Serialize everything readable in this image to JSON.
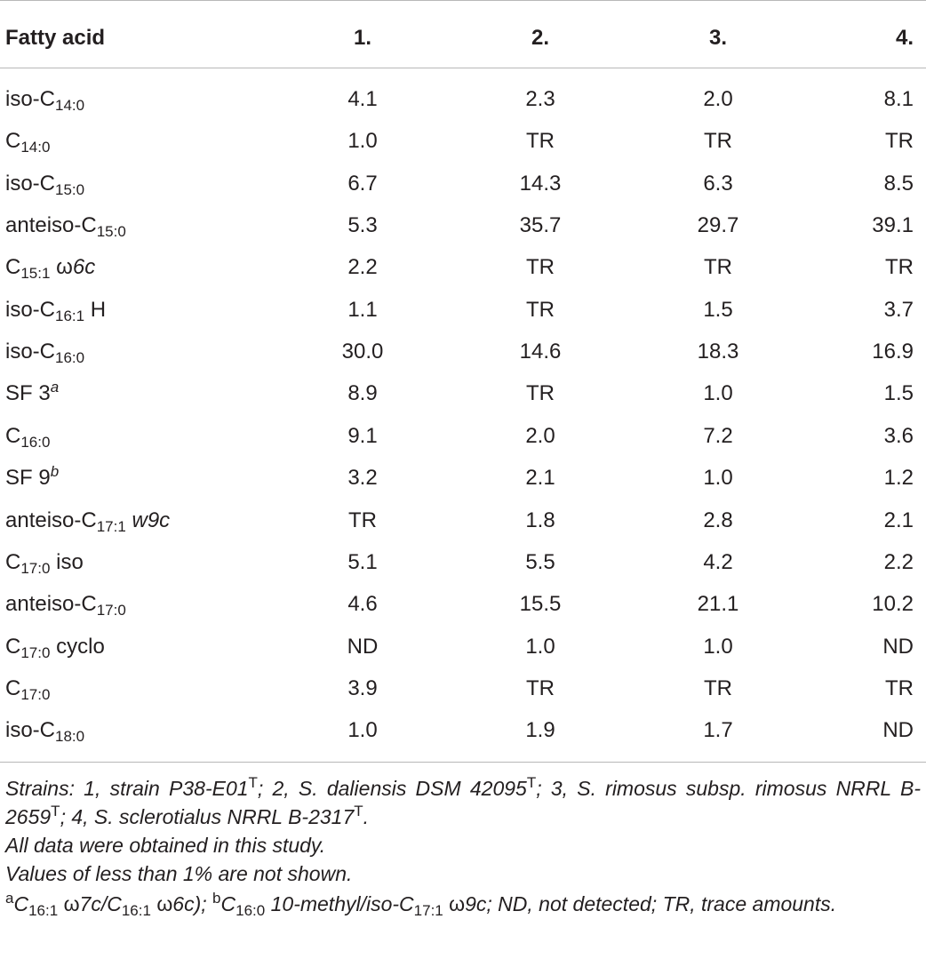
{
  "table": {
    "headers": [
      "Fatty acid",
      "1.",
      "2.",
      "3.",
      "4."
    ],
    "rows": [
      {
        "name": {
          "pre": "iso-C",
          "sub": "14:0",
          "post": ""
        },
        "values": [
          "4.1",
          "2.3",
          "2.0",
          "8.1"
        ]
      },
      {
        "name": {
          "pre": "C",
          "sub": "14:0",
          "post": ""
        },
        "values": [
          "1.0",
          "TR",
          "TR",
          "TR"
        ]
      },
      {
        "name": {
          "pre": "iso-C",
          "sub": "15:0",
          "post": ""
        },
        "values": [
          "6.7",
          "14.3",
          "6.3",
          "8.5"
        ]
      },
      {
        "name": {
          "pre": "anteiso-C",
          "sub": "15:0",
          "post": ""
        },
        "values": [
          "5.3",
          "35.7",
          "29.7",
          "39.1"
        ]
      },
      {
        "name": {
          "pre": "C",
          "sub": "15:1",
          "post": " ω",
          "post_italic": "6c"
        },
        "values": [
          "2.2",
          "TR",
          "TR",
          "TR"
        ]
      },
      {
        "name": {
          "pre": "iso-C",
          "sub": "16:1",
          "post": " H"
        },
        "values": [
          "1.1",
          "TR",
          "1.5",
          "3.7"
        ]
      },
      {
        "name": {
          "pre": "iso-C",
          "sub": "16:0",
          "post": ""
        },
        "values": [
          "30.0",
          "14.6",
          "18.3",
          "16.9"
        ]
      },
      {
        "name": {
          "pre": "SF 3",
          "sup": "a"
        },
        "values": [
          "8.9",
          "TR",
          "1.0",
          "1.5"
        ]
      },
      {
        "name": {
          "pre": "C",
          "sub": "16:0",
          "post": ""
        },
        "values": [
          "9.1",
          "2.0",
          "7.2",
          "3.6"
        ]
      },
      {
        "name": {
          "pre": "SF 9",
          "sup": "b"
        },
        "values": [
          "3.2",
          "2.1",
          "1.0",
          "1.2"
        ]
      },
      {
        "name": {
          "pre": "anteiso-C",
          "sub": "17:1",
          "post": " ",
          "post_italic": "w9c"
        },
        "values": [
          "TR",
          "1.8",
          "2.8",
          "2.1"
        ]
      },
      {
        "name": {
          "pre": "C",
          "sub": "17:0",
          "post": " iso"
        },
        "values": [
          "5.1",
          "5.5",
          "4.2",
          "2.2"
        ]
      },
      {
        "name": {
          "pre": "anteiso-C",
          "sub": "17:0",
          "post": ""
        },
        "values": [
          "4.6",
          "15.5",
          "21.1",
          "10.2"
        ]
      },
      {
        "name": {
          "pre": "C",
          "sub": "17:0",
          "post": " cyclo"
        },
        "values": [
          "ND",
          "1.0",
          "1.0",
          "ND"
        ]
      },
      {
        "name": {
          "pre": "C",
          "sub": "17:0",
          "post": ""
        },
        "values": [
          "3.9",
          "TR",
          "TR",
          "TR"
        ]
      },
      {
        "name": {
          "pre": "iso-C",
          "sub": "18:0",
          "post": ""
        },
        "values": [
          "1.0",
          "1.9",
          "1.7",
          "ND"
        ]
      }
    ]
  },
  "footnotes": {
    "strains": {
      "s1": "Strains: 1, strain P38-E01",
      "s2": "; 2, S. daliensis DSM 42095",
      "s3": "; 3, S. rimosus subsp. rimosus NRRL B-2659",
      "s4": "; 4, S. sclerotialus NRRL B-2317",
      "end": ".",
      "type_mark": "T"
    },
    "data_note": "All data were obtained in this study.",
    "values_note": "Values of less than 1% are not shown.",
    "abbrev": {
      "a_mark": "a",
      "a_c1": "C",
      "a_c1_sub": "16:1",
      "a_w1": " ω",
      "a_t1": "7c/C",
      "a_c2_sub": "16:1",
      "a_w2": " ω",
      "a_t2": "6c); ",
      "b_mark": "b",
      "b_c1": "C",
      "b_c1_sub": "16:0",
      "b_t1": " 10-methyl/iso-C",
      "b_c2_sub": "17:1",
      "b_w1": " ω",
      "b_t2": "9c; ND, not detected; TR, trace amounts."
    }
  }
}
